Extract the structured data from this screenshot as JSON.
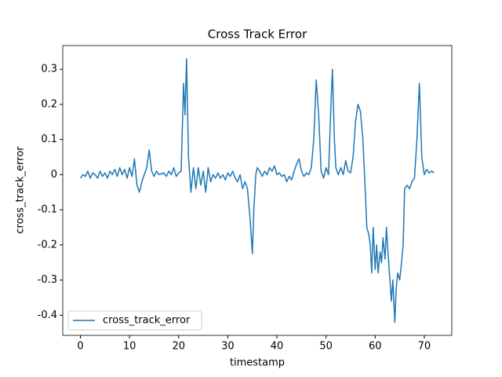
{
  "chart_data": {
    "type": "line",
    "title": "Cross Track Error",
    "x_label": "timestamp",
    "y_label": "cross_track_error",
    "series": [
      {
        "name": "cross_track_error",
        "color": "#1f77b4",
        "x": [
          0,
          0.5,
          1,
          1.5,
          2,
          2.5,
          3,
          3.5,
          4,
          4.5,
          5,
          5.5,
          6,
          6.5,
          7,
          7.5,
          8,
          8.5,
          9,
          9.5,
          10,
          10.5,
          11,
          11.5,
          12,
          12.5,
          13,
          13.5,
          14,
          14.5,
          15,
          15.5,
          16,
          17,
          17.5,
          18,
          18.5,
          19,
          19.5,
          20,
          20.5,
          21,
          21.3,
          21.6,
          22,
          22.5,
          23,
          23.5,
          24,
          24.5,
          25,
          25.5,
          26,
          26.5,
          27,
          27.5,
          28,
          28.5,
          29,
          29.5,
          30,
          30.5,
          31,
          31.5,
          32,
          32.5,
          33,
          33.5,
          34,
          34.5,
          35,
          35.3,
          35.7,
          36,
          36.5,
          37,
          37.5,
          38,
          38.5,
          39,
          39.5,
          40,
          40.5,
          41,
          41.5,
          42,
          42.5,
          43,
          43.5,
          44,
          44.5,
          45,
          45.5,
          46,
          46.5,
          47,
          47.5,
          48,
          48.5,
          49,
          49.5,
          50,
          50.5,
          51,
          51.3,
          51.7,
          52,
          52.5,
          53,
          53.5,
          54,
          54.5,
          55,
          55.5,
          56,
          56.5,
          57,
          57.5,
          58,
          58.3,
          58.7,
          59,
          59.3,
          59.6,
          60,
          60.3,
          60.6,
          61,
          61.3,
          61.6,
          62,
          62.3,
          62.6,
          63,
          63.3,
          63.6,
          64,
          64.3,
          64.6,
          65,
          65.3,
          65.7,
          66,
          66.5,
          67,
          67.5,
          68,
          68.5,
          69,
          69.5,
          70,
          70.5,
          71,
          71.5,
          72
        ],
        "values": [
          -0.01,
          0.0,
          -0.005,
          0.01,
          -0.01,
          0.005,
          0.0,
          -0.01,
          0.01,
          -0.005,
          0.005,
          -0.01,
          0.01,
          0.0,
          0.015,
          -0.005,
          0.02,
          0.0,
          0.015,
          -0.01,
          0.02,
          -0.005,
          0.045,
          -0.03,
          -0.05,
          -0.02,
          0.0,
          0.02,
          0.07,
          0.01,
          -0.005,
          0.01,
          0.0,
          0.005,
          -0.005,
          0.01,
          0.0,
          0.02,
          -0.005,
          0.005,
          0.01,
          0.26,
          0.17,
          0.33,
          0.05,
          -0.05,
          0.02,
          -0.04,
          0.02,
          -0.03,
          0.01,
          -0.05,
          0.02,
          -0.02,
          0.0,
          -0.01,
          0.005,
          -0.01,
          0.0,
          -0.015,
          0.005,
          -0.005,
          0.01,
          -0.01,
          -0.02,
          0.0,
          -0.04,
          -0.02,
          -0.04,
          -0.12,
          -0.225,
          -0.1,
          0.0,
          0.02,
          0.01,
          -0.005,
          0.01,
          0.0,
          0.02,
          0.01,
          0.025,
          0.0,
          0.005,
          -0.005,
          0.0,
          -0.02,
          -0.005,
          -0.015,
          0.01,
          0.03,
          0.045,
          0.01,
          -0.005,
          0.005,
          0.0,
          0.02,
          0.1,
          0.27,
          0.17,
          0.01,
          -0.01,
          0.02,
          0.0,
          0.2,
          0.3,
          0.1,
          0.02,
          0.0,
          0.02,
          0.0,
          0.04,
          0.01,
          0.005,
          0.05,
          0.15,
          0.2,
          0.18,
          0.1,
          -0.05,
          -0.15,
          -0.17,
          -0.2,
          -0.28,
          -0.15,
          -0.27,
          -0.2,
          -0.28,
          -0.22,
          -0.25,
          -0.18,
          -0.24,
          -0.15,
          -0.22,
          -0.3,
          -0.36,
          -0.3,
          -0.42,
          -0.32,
          -0.28,
          -0.3,
          -0.26,
          -0.2,
          -0.04,
          -0.03,
          -0.04,
          -0.02,
          -0.01,
          0.1,
          0.26,
          0.05,
          0.0,
          0.015,
          0.005,
          0.01,
          0.005
        ]
      }
    ],
    "xlim": [
      -3.6,
      75.6
    ],
    "xticks": [
      0,
      10,
      20,
      30,
      40,
      50,
      60,
      70
    ],
    "ylim": [
      -0.4575,
      0.3675
    ],
    "yticks": [
      -0.4,
      -0.3,
      -0.2,
      -0.1,
      0.0,
      0.1,
      0.2,
      0.3
    ],
    "legend": "lower left"
  }
}
